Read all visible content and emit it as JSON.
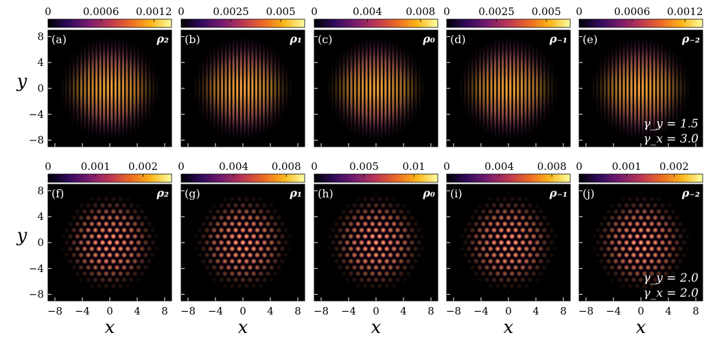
{
  "chart_data": [
    {
      "type": "heatmap",
      "rows": [
        {
          "pattern": "stripes",
          "panels": [
            {
              "label": "(a)",
              "component": "ρ₂",
              "colorbar": {
                "range": [
                  0,
                  0.0014
                ],
                "ticks": [
                  "0",
                  "0.0006",
                  "0.0012"
                ],
                "tick_values": [
                  0,
                  0.0006,
                  0.0012
                ]
              }
            },
            {
              "label": "(b)",
              "component": "ρ₁",
              "colorbar": {
                "range": [
                  0,
                  0.0062
                ],
                "ticks": [
                  "0",
                  "0.0025",
                  "0.005"
                ],
                "tick_values": [
                  0,
                  0.0025,
                  0.005
                ]
              }
            },
            {
              "label": "(c)",
              "component": "ρ₀",
              "colorbar": {
                "range": [
                  0,
                  0.0093
                ],
                "ticks": [
                  "0",
                  "0.004",
                  "0.008"
                ],
                "tick_values": [
                  0,
                  0.004,
                  0.008
                ]
              }
            },
            {
              "label": "(d)",
              "component": "ρ₋₁",
              "colorbar": {
                "range": [
                  0,
                  0.0062
                ],
                "ticks": [
                  "0",
                  "0.0025",
                  "0.005"
                ],
                "tick_values": [
                  0,
                  0.0025,
                  0.005
                ]
              }
            },
            {
              "label": "(e)",
              "component": "ρ₋₂",
              "colorbar": {
                "range": [
                  0,
                  0.0014
                ],
                "ticks": [
                  "0",
                  "0.0006",
                  "0.0012"
                ],
                "tick_values": [
                  0,
                  0.0006,
                  0.0012
                ]
              }
            }
          ],
          "annotations": [
            "γ_y = 1.5",
            "γ_x = 3.0"
          ]
        },
        {
          "pattern": "triangular-lattice",
          "panels": [
            {
              "label": "(f)",
              "component": "ρ₂",
              "colorbar": {
                "range": [
                  0,
                  0.0026
                ],
                "ticks": [
                  "0",
                  "0.001",
                  "0.002"
                ],
                "tick_values": [
                  0,
                  0.001,
                  0.002
                ]
              }
            },
            {
              "label": "(g)",
              "component": "ρ₁",
              "colorbar": {
                "range": [
                  0,
                  0.0094
                ],
                "ticks": [
                  "0",
                  "0.004",
                  "0.008"
                ],
                "tick_values": [
                  0,
                  0.004,
                  0.008
                ]
              }
            },
            {
              "label": "(h)",
              "component": "ρ₀",
              "colorbar": {
                "range": [
                  0,
                  0.0124
                ],
                "ticks": [
                  "0",
                  "0.005",
                  "0.01"
                ],
                "tick_values": [
                  0,
                  0.005,
                  0.01
                ]
              }
            },
            {
              "label": "(i)",
              "component": "ρ₋₁",
              "colorbar": {
                "range": [
                  0,
                  0.0094
                ],
                "ticks": [
                  "0",
                  "0.004",
                  "0.008"
                ],
                "tick_values": [
                  0,
                  0.004,
                  0.008
                ]
              }
            },
            {
              "label": "(j)",
              "component": "ρ₋₂",
              "colorbar": {
                "range": [
                  0,
                  0.0026
                ],
                "ticks": [
                  "0",
                  "0.001",
                  "0.002"
                ],
                "tick_values": [
                  0,
                  0.001,
                  0.002
                ]
              }
            }
          ],
          "annotations": [
            "γ_y = 2.0",
            "γ_x = 2.0"
          ]
        }
      ],
      "xlabel": "x",
      "ylabel": "y",
      "xlim": [
        -9,
        9
      ],
      "ylim": [
        -9,
        9
      ],
      "xticks": [
        -8,
        -4,
        0,
        4,
        8
      ],
      "yticks": [
        8,
        4,
        0,
        -4,
        -8
      ],
      "xtick_labels": [
        "−8",
        "−4",
        "0",
        "4",
        "8"
      ],
      "ytick_labels": [
        "8",
        "4",
        "0",
        "−4",
        "−8"
      ],
      "colormap": "inferno",
      "colormap_stops": [
        "#000004",
        "#320a5e",
        "#781c6d",
        "#bc3754",
        "#ed6925",
        "#fbb61a",
        "#fcffa4"
      ],
      "background": "#000000"
    }
  ]
}
